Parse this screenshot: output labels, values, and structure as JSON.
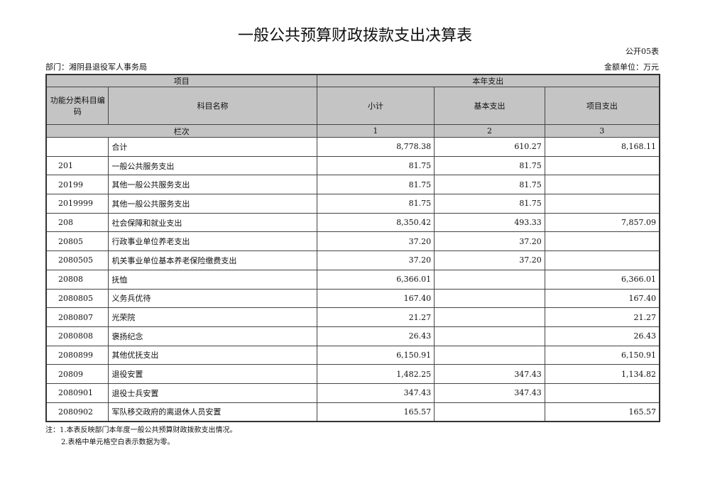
{
  "title": "一般公共预算财政拨款支出决算表",
  "form_code": "公开05表",
  "department": "部门：湘阴县退役军人事务局",
  "unit": "金额单位：万元",
  "header": {
    "project": "项目",
    "this_year": "本年支出",
    "code_col": "功能分类科目编码",
    "name_col": "科目名称",
    "subtotal": "小计",
    "basic": "基本支出",
    "project_exp": "项目支出",
    "column_index": "栏次",
    "idx1": "1",
    "idx2": "2",
    "idx3": "3"
  },
  "rows": [
    {
      "code": "",
      "name": "合计",
      "subtotal": "8,778.38",
      "basic": "610.27",
      "project": "8,168.11"
    },
    {
      "code": "201",
      "name": "一般公共服务支出",
      "subtotal": "81.75",
      "basic": "81.75",
      "project": ""
    },
    {
      "code": "20199",
      "name": "其他一般公共服务支出",
      "subtotal": "81.75",
      "basic": "81.75",
      "project": ""
    },
    {
      "code": "2019999",
      "name": "其他一般公共服务支出",
      "subtotal": "81.75",
      "basic": "81.75",
      "project": ""
    },
    {
      "code": "208",
      "name": "社会保障和就业支出",
      "subtotal": "8,350.42",
      "basic": "493.33",
      "project": "7,857.09"
    },
    {
      "code": "20805",
      "name": "行政事业单位养老支出",
      "subtotal": "37.20",
      "basic": "37.20",
      "project": ""
    },
    {
      "code": "2080505",
      "name": "机关事业单位基本养老保险缴费支出",
      "subtotal": "37.20",
      "basic": "37.20",
      "project": ""
    },
    {
      "code": "20808",
      "name": "抚恤",
      "subtotal": "6,366.01",
      "basic": "",
      "project": "6,366.01"
    },
    {
      "code": "2080805",
      "name": "义务兵优待",
      "subtotal": "167.40",
      "basic": "",
      "project": "167.40"
    },
    {
      "code": "2080807",
      "name": "光荣院",
      "subtotal": "21.27",
      "basic": "",
      "project": "21.27"
    },
    {
      "code": "2080808",
      "name": "褒扬纪念",
      "subtotal": "26.43",
      "basic": "",
      "project": "26.43"
    },
    {
      "code": "2080899",
      "name": "其他优抚支出",
      "subtotal": "6,150.91",
      "basic": "",
      "project": "6,150.91"
    },
    {
      "code": "20809",
      "name": "退役安置",
      "subtotal": "1,482.25",
      "basic": "347.43",
      "project": "1,134.82"
    },
    {
      "code": "2080901",
      "name": "退役士兵安置",
      "subtotal": "347.43",
      "basic": "347.43",
      "project": ""
    },
    {
      "code": "2080902",
      "name": "军队移交政府的离退休人员安置",
      "subtotal": "165.57",
      "basic": "",
      "project": "165.57"
    }
  ],
  "notes": [
    "注：1.本表反映部门本年度一般公共预算财政拨款支出情况。",
    "2.表格中单元格空白表示数据为零。"
  ]
}
